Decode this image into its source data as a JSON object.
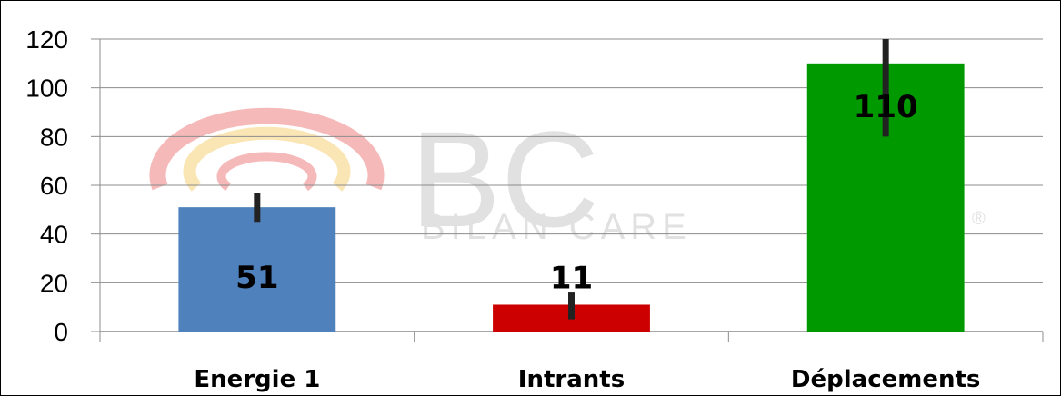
{
  "chart_data": {
    "type": "bar",
    "categories": [
      "Energie 1",
      "Intrants",
      "Déplacements"
    ],
    "values": [
      51,
      11,
      110
    ],
    "error_ranges": [
      [
        45,
        57
      ],
      [
        5,
        16
      ],
      [
        80,
        120
      ]
    ],
    "data_labels": [
      "51",
      "11",
      "110"
    ],
    "colors": [
      "#4f81bd",
      "#cc0000",
      "#009900"
    ],
    "ylim": [
      0,
      120
    ],
    "yticks": [
      "0",
      "20",
      "40",
      "60",
      "80",
      "100",
      "120"
    ],
    "grid": true,
    "legend": "none",
    "title": "",
    "xlabel": "",
    "ylabel": ""
  },
  "watermark": {
    "logo_text": "BC",
    "sub_text": "BILAN CARE",
    "mark": "®"
  }
}
